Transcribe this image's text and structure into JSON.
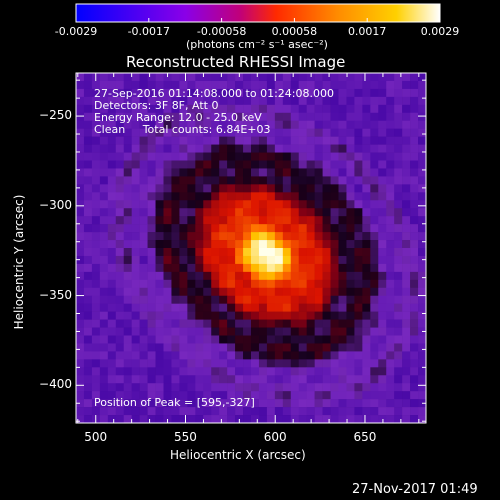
{
  "chart_data": {
    "type": "heatmap",
    "title": "Reconstructed RHESSI Image",
    "xlabel": "Heliocentric X (arcsec)",
    "ylabel": "Heliocentric Y (arcsec)",
    "xlim": [
      489,
      684
    ],
    "ylim": [
      -421,
      -226
    ],
    "xticks": [
      500,
      550,
      600,
      650
    ],
    "yticks": [
      -250,
      -300,
      -350,
      -400
    ],
    "colorbar": {
      "min": -0.0029,
      "max": 0.0029,
      "ticks": [
        "-0.0029",
        "-0.0017",
        "-0.00058",
        "0.00058",
        "0.0017",
        "0.0029"
      ],
      "label": "(photons cm⁻² s⁻¹ asec⁻²)",
      "colormap": [
        "#0000ff",
        "#8a00e8",
        "#c0007a",
        "#ff2a00",
        "#ff8c00",
        "#ffd000",
        "#ffffff"
      ]
    },
    "peak": {
      "x": 595,
      "y": -327
    },
    "grid": false
  },
  "info": {
    "time_range": "27-Sep-2016 01:14:08.000 to 01:24:08.000",
    "detectors": "Detectors: 3F 8F, Att 0",
    "energy": "Energy Range: 12.0 - 25.0 keV",
    "algorithm": "Clean     Total counts: 6.84E+03",
    "peak_label": "Position of Peak = [595,-327]"
  },
  "footer": {
    "timestamp": "27-Nov-2017 01:49"
  }
}
